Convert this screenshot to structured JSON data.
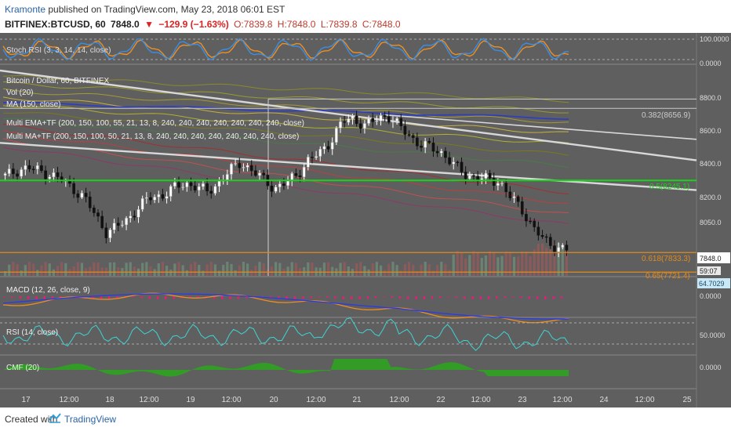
{
  "header": {
    "author": "Kramonte",
    "published_text": "published on TradingView.com, May 23, 2018 06:01 EST",
    "symbol": "BITFINEX:BTCUSD, 60",
    "last": "7848.0",
    "change": "−129.9 (−1.63%)",
    "open": "O:7839.8",
    "high": "H:7848.0",
    "low": "L:7839.8",
    "close": "C:7848.0"
  },
  "panes": {
    "stoch_label": "Stoch RSI (3, 3, 14, 14, close)",
    "stoch_ticks": [
      "100.0000",
      "0.0000"
    ],
    "main_title": "Bitcoin / Dollar, 60, BITFINEX",
    "vol_label": "Vol (20)",
    "ma_label": "MA (150, close)",
    "ema_label": "Multi EMA+TF (200, 150, 100, 55, 21, 13, 8, 240, 240, 240, 240, 240, 240, 240, close)",
    "mma_label": "Multi MA+TF (200, 150, 100, 50, 21, 13, 8, 240, 240, 240, 240, 240, 240, 240, close)",
    "price_ticks": [
      "8800.0",
      "8600.0",
      "8400.0",
      "8200.0",
      "8050.0",
      "7848.0"
    ],
    "fib_labels": [
      "0.382(8656.9)",
      "0.5(8245.1)",
      "0.618(7833.3)",
      "0.65(7721.4)"
    ],
    "countdown": "59:07",
    "macd_label": "MACD (12, 26, close, 9)",
    "macd_ticks": [
      "64.7029",
      "0.0000"
    ],
    "rsi_label": "RSI (14, close)",
    "rsi_ticks": [
      "50.0000"
    ],
    "cmf_label": "CMF (20)",
    "cmf_ticks": [
      "0.0000"
    ],
    "time_ticks": [
      "17",
      "12:00",
      "18",
      "12:00",
      "19",
      "12:00",
      "20",
      "12:00",
      "21",
      "12:00",
      "22",
      "12:00",
      "23",
      "12:00",
      "24",
      "12:00",
      "25"
    ]
  },
  "colors": {
    "background": "#5f5f5f",
    "up": "#ffffff",
    "down": "#111111",
    "fib_green": "#19d219",
    "fib_orange": "#e08a1a",
    "trend": "#d8d8d8",
    "stoch_k": "#3a8ee6",
    "stoch_d": "#ef8f1f",
    "macd": "#2a3ae8",
    "signal": "#ef8f1f",
    "hist": "#e0207a",
    "rsi": "#3fd4d4",
    "cmf": "#2ea320",
    "ma": "#2d3cc4"
  },
  "chart_data": {
    "type": "candlestick",
    "x_range": [
      "17",
      "25"
    ],
    "y_range": [
      7700,
      8900
    ],
    "price_path": [
      8270,
      8300,
      8320,
      8300,
      8280,
      8250,
      8200,
      8150,
      8050,
      7950,
      7980,
      8030,
      8100,
      8150,
      8160,
      8200,
      8230,
      8210,
      8180,
      8230,
      8300,
      8350,
      8300,
      8250,
      8200,
      8230,
      8280,
      8360,
      8400,
      8470,
      8580,
      8600,
      8560,
      8590,
      8620,
      8560,
      8500,
      8450,
      8430,
      8400,
      8330,
      8280,
      8260,
      8250,
      8240,
      8150,
      8080,
      7980,
      7900,
      7870,
      7848
    ],
    "fib_levels": [
      {
        "label": "0.382",
        "value": 8656.9
      },
      {
        "label": "0.5",
        "value": 8245.1
      },
      {
        "label": "0.618",
        "value": 7833.3
      },
      {
        "label": "0.65",
        "value": 7721.4
      }
    ],
    "last_price": 7848.0
  }
}
